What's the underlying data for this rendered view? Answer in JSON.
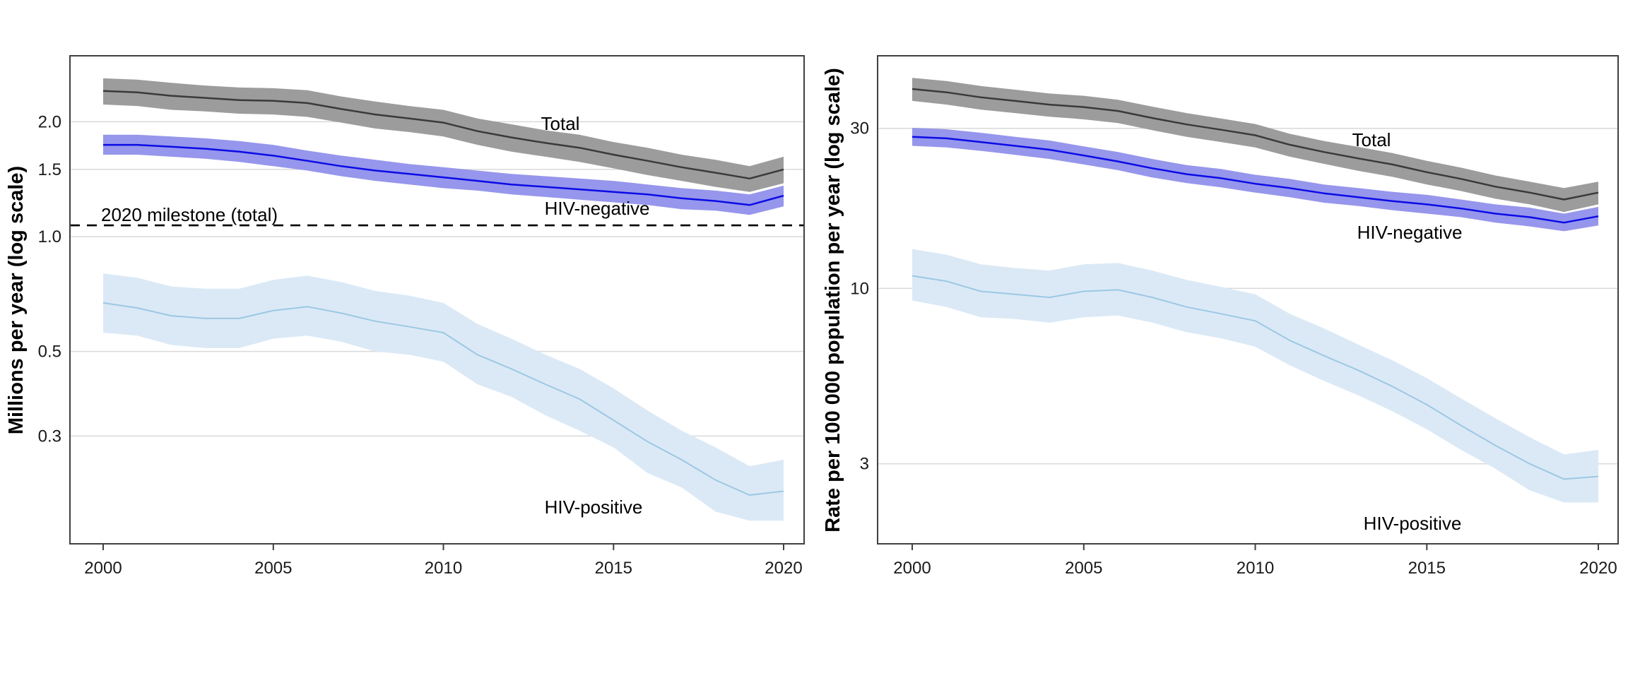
{
  "style": {
    "background": "#ffffff",
    "grid_color": "#d9d9d9",
    "axis_color": "#404040",
    "text_color": "#000000",
    "milestone_color": "#000000"
  },
  "chart_data": [
    {
      "id": "deaths",
      "type": "line",
      "title": "",
      "ylabel": "Millions per year (log scale)",
      "y_scale": "log",
      "grid": "horizontal",
      "x": [
        2000,
        2001,
        2002,
        2003,
        2004,
        2005,
        2006,
        2007,
        2008,
        2009,
        2010,
        2011,
        2012,
        2013,
        2014,
        2015,
        2016,
        2017,
        2018,
        2019,
        2020
      ],
      "x_ticks": [
        {
          "value": 2000,
          "label": "2000"
        },
        {
          "value": 2005,
          "label": "2005"
        },
        {
          "value": 2010,
          "label": "2010"
        },
        {
          "value": 2015,
          "label": "2015"
        },
        {
          "value": 2020,
          "label": "2020"
        }
      ],
      "y_ticks": [
        {
          "value": 2.0,
          "label": "2.0"
        },
        {
          "value": 1.5,
          "label": "1.5"
        },
        {
          "value": 1.0,
          "label": "1.0"
        },
        {
          "value": 0.5,
          "label": "0.5"
        },
        {
          "value": 0.3,
          "label": "0.3"
        }
      ],
      "series": [
        {
          "id": "total",
          "label": "Total",
          "line_color": "#3a3a3a",
          "band_color": "#9c9c9c",
          "values": [
            2.41,
            2.39,
            2.34,
            2.31,
            2.28,
            2.27,
            2.24,
            2.16,
            2.09,
            2.04,
            1.99,
            1.89,
            1.82,
            1.76,
            1.71,
            1.64,
            1.58,
            1.52,
            1.47,
            1.42,
            1.5
          ],
          "upper": [
            2.6,
            2.58,
            2.53,
            2.49,
            2.46,
            2.45,
            2.42,
            2.33,
            2.26,
            2.2,
            2.15,
            2.04,
            1.97,
            1.9,
            1.85,
            1.77,
            1.71,
            1.64,
            1.59,
            1.53,
            1.62
          ],
          "lower": [
            2.22,
            2.2,
            2.15,
            2.13,
            2.1,
            2.09,
            2.06,
            1.99,
            1.92,
            1.88,
            1.83,
            1.74,
            1.67,
            1.62,
            1.57,
            1.51,
            1.45,
            1.4,
            1.35,
            1.31,
            1.38
          ]
        },
        {
          "id": "hiv-negative",
          "label": "HIV-negative",
          "line_color": "#0b0be6",
          "band_color": "#9696ec",
          "values": [
            1.74,
            1.74,
            1.72,
            1.7,
            1.67,
            1.63,
            1.58,
            1.53,
            1.49,
            1.46,
            1.43,
            1.4,
            1.37,
            1.35,
            1.33,
            1.31,
            1.29,
            1.26,
            1.24,
            1.21,
            1.28
          ],
          "upper": [
            1.85,
            1.85,
            1.83,
            1.81,
            1.78,
            1.74,
            1.68,
            1.63,
            1.59,
            1.55,
            1.52,
            1.49,
            1.46,
            1.44,
            1.42,
            1.4,
            1.37,
            1.34,
            1.32,
            1.29,
            1.36
          ],
          "lower": [
            1.64,
            1.64,
            1.62,
            1.6,
            1.57,
            1.53,
            1.49,
            1.44,
            1.4,
            1.37,
            1.34,
            1.32,
            1.29,
            1.27,
            1.25,
            1.23,
            1.21,
            1.18,
            1.17,
            1.14,
            1.2
          ]
        },
        {
          "id": "hiv-positive",
          "label": "HIV-positive",
          "line_color": "#9cc8e3",
          "band_color": "#dbe9f6",
          "values": [
            0.67,
            0.65,
            0.62,
            0.61,
            0.61,
            0.64,
            0.655,
            0.63,
            0.6,
            0.58,
            0.56,
            0.49,
            0.45,
            0.41,
            0.375,
            0.33,
            0.29,
            0.26,
            0.23,
            0.21,
            0.215
          ],
          "upper": [
            0.8,
            0.78,
            0.74,
            0.73,
            0.73,
            0.77,
            0.79,
            0.76,
            0.72,
            0.7,
            0.67,
            0.59,
            0.54,
            0.49,
            0.45,
            0.4,
            0.35,
            0.31,
            0.28,
            0.25,
            0.26
          ],
          "lower": [
            0.56,
            0.55,
            0.52,
            0.51,
            0.51,
            0.54,
            0.55,
            0.53,
            0.5,
            0.49,
            0.47,
            0.41,
            0.38,
            0.34,
            0.31,
            0.28,
            0.24,
            0.22,
            0.19,
            0.18,
            0.18
          ]
        }
      ],
      "annotations": [
        {
          "id": "milestone",
          "label": "2020 milestone (total)",
          "value": 1.07,
          "style": "dashed"
        }
      ]
    },
    {
      "id": "rates",
      "type": "line",
      "title": "",
      "ylabel": "Rate per 100 000 population per year (log scale)",
      "y_scale": "log",
      "grid": "horizontal",
      "x": [
        2000,
        2001,
        2002,
        2003,
        2004,
        2005,
        2006,
        2007,
        2008,
        2009,
        2010,
        2011,
        2012,
        2013,
        2014,
        2015,
        2016,
        2017,
        2018,
        2019,
        2020
      ],
      "x_ticks": [
        {
          "value": 2000,
          "label": "2000"
        },
        {
          "value": 2005,
          "label": "2005"
        },
        {
          "value": 2010,
          "label": "2010"
        },
        {
          "value": 2015,
          "label": "2015"
        },
        {
          "value": 2020,
          "label": "2020"
        }
      ],
      "y_ticks": [
        {
          "value": 30,
          "label": "30"
        },
        {
          "value": 10,
          "label": "10"
        },
        {
          "value": 3,
          "label": "3"
        }
      ],
      "series": [
        {
          "id": "total",
          "label": "Total",
          "line_color": "#3a3a3a",
          "band_color": "#9c9c9c",
          "values": [
            39.3,
            38.4,
            37.1,
            36.2,
            35.3,
            34.7,
            33.8,
            32.2,
            30.8,
            29.7,
            28.6,
            26.8,
            25.5,
            24.4,
            23.4,
            22.2,
            21.2,
            20.1,
            19.3,
            18.4,
            19.3
          ],
          "upper": [
            42.4,
            41.5,
            40.1,
            39.1,
            38.1,
            37.5,
            36.5,
            34.8,
            33.3,
            32.1,
            30.9,
            28.9,
            27.5,
            26.4,
            25.3,
            24.0,
            22.9,
            21.7,
            20.8,
            19.9,
            20.8
          ],
          "lower": [
            36.2,
            35.3,
            34.1,
            33.3,
            32.5,
            31.9,
            31.1,
            29.6,
            28.3,
            27.3,
            26.3,
            24.7,
            23.5,
            22.4,
            21.5,
            20.4,
            19.5,
            18.5,
            17.8,
            16.9,
            17.8
          ]
        },
        {
          "id": "hiv-negative",
          "label": "HIV-negative",
          "line_color": "#0b0be6",
          "band_color": "#9696ec",
          "values": [
            28.3,
            28.0,
            27.3,
            26.6,
            25.9,
            24.9,
            23.9,
            22.8,
            21.9,
            21.3,
            20.5,
            19.9,
            19.2,
            18.7,
            18.2,
            17.8,
            17.3,
            16.7,
            16.3,
            15.7,
            16.4
          ],
          "upper": [
            30.1,
            29.8,
            29.1,
            28.3,
            27.6,
            26.5,
            25.5,
            24.3,
            23.3,
            22.7,
            21.8,
            21.2,
            20.4,
            19.9,
            19.4,
            19.0,
            18.4,
            17.8,
            17.4,
            16.7,
            17.5
          ],
          "lower": [
            26.6,
            26.3,
            25.7,
            25.0,
            24.3,
            23.4,
            22.5,
            21.4,
            20.6,
            20.0,
            19.3,
            18.7,
            18.0,
            17.6,
            17.1,
            16.7,
            16.3,
            15.7,
            15.3,
            14.8,
            15.4
          ]
        },
        {
          "id": "hiv-positive",
          "label": "HIV-positive",
          "line_color": "#9cc8e3",
          "band_color": "#dbe9f6",
          "values": [
            10.9,
            10.5,
            9.8,
            9.6,
            9.4,
            9.8,
            9.9,
            9.4,
            8.8,
            8.4,
            8.0,
            7.0,
            6.3,
            5.7,
            5.1,
            4.5,
            3.9,
            3.4,
            3.0,
            2.7,
            2.75
          ],
          "upper": [
            13.1,
            12.6,
            11.8,
            11.5,
            11.3,
            11.8,
            11.9,
            11.3,
            10.6,
            10.1,
            9.6,
            8.4,
            7.6,
            6.8,
            6.1,
            5.4,
            4.7,
            4.1,
            3.6,
            3.2,
            3.3
          ],
          "lower": [
            9.2,
            8.8,
            8.2,
            8.1,
            7.9,
            8.2,
            8.3,
            7.9,
            7.4,
            7.1,
            6.7,
            5.9,
            5.3,
            4.8,
            4.3,
            3.8,
            3.3,
            2.9,
            2.5,
            2.3,
            2.3
          ]
        }
      ],
      "annotations": []
    }
  ]
}
